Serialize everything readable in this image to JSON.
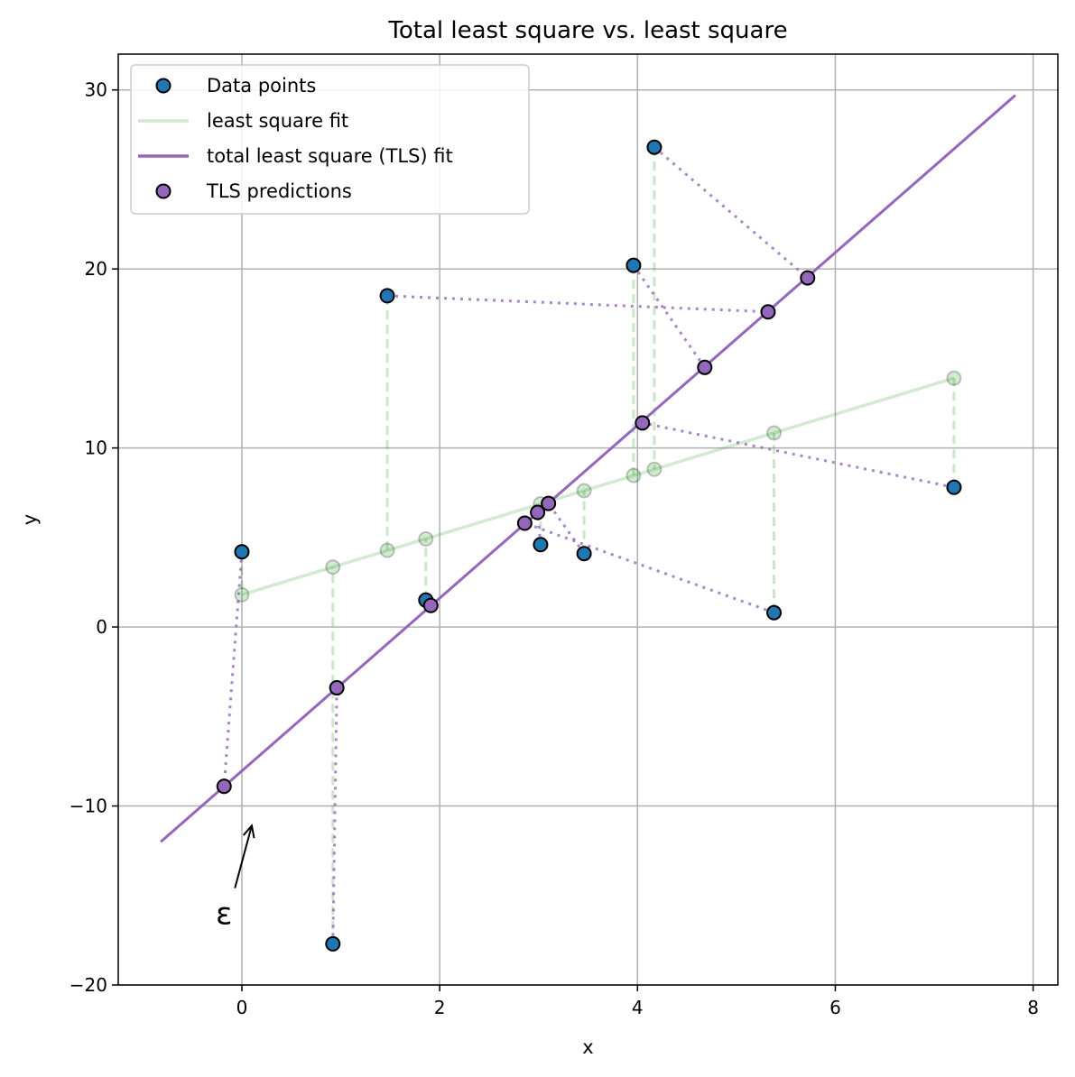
{
  "chart_data": {
    "type": "scatter",
    "title": "Total least square vs. least square",
    "xlabel": "x",
    "ylabel": "y",
    "xlim": [
      -1.25,
      8.25
    ],
    "ylim": [
      -20,
      32
    ],
    "xticks": [
      0,
      2,
      4,
      6,
      8
    ],
    "yticks": [
      -20,
      -10,
      0,
      10,
      20,
      30
    ],
    "xtick_labels": [
      "0",
      "2",
      "4",
      "6",
      "8"
    ],
    "ytick_labels": [
      "−20",
      "−10",
      "0",
      "10",
      "20",
      "30"
    ],
    "grid": true,
    "legend_position": "upper-left",
    "annotation": {
      "text": "ε",
      "text_at": [
        -0.18,
        -16.0
      ],
      "arrow_to": [
        0.1,
        -11.1
      ]
    },
    "colors": {
      "data_points": "#1f77b4",
      "ls_fit": "#2ca02c",
      "tls_fit": "#9467bd",
      "tls_predictions": "#9467bd",
      "grid": "#b0b0b0"
    },
    "series": [
      {
        "name": "Data points",
        "kind": "scatter",
        "points": [
          [
            0.0,
            4.2
          ],
          [
            0.92,
            -17.7
          ],
          [
            1.47,
            18.5
          ],
          [
            1.86,
            1.5
          ],
          [
            3.02,
            4.6
          ],
          [
            3.46,
            4.1
          ],
          [
            3.96,
            20.2
          ],
          [
            4.17,
            26.8
          ],
          [
            5.38,
            0.8
          ],
          [
            7.2,
            7.8
          ]
        ]
      },
      {
        "name": "least square fit",
        "kind": "line",
        "x": [
          0.0,
          7.2
        ],
        "y": [
          1.8,
          13.9
        ],
        "ls_predictions": [
          [
            0.0,
            1.8
          ],
          [
            0.92,
            3.35
          ],
          [
            1.47,
            4.28
          ],
          [
            1.86,
            4.92
          ],
          [
            3.02,
            6.88
          ],
          [
            3.46,
            7.61
          ],
          [
            3.96,
            8.46
          ],
          [
            4.17,
            8.81
          ],
          [
            5.38,
            10.84
          ],
          [
            7.2,
            13.9
          ]
        ]
      },
      {
        "name": "total least square (TLS) fit",
        "kind": "line",
        "x": [
          -0.82,
          7.82
        ],
        "y": [
          -12.0,
          29.7
        ]
      },
      {
        "name": "TLS predictions",
        "kind": "scatter",
        "points": [
          [
            -0.18,
            -8.9
          ],
          [
            0.96,
            -3.4
          ],
          [
            5.32,
            17.6
          ],
          [
            1.91,
            1.2
          ],
          [
            2.99,
            6.4
          ],
          [
            3.1,
            6.9
          ],
          [
            4.68,
            14.5
          ],
          [
            5.72,
            19.5
          ],
          [
            2.86,
            5.8
          ],
          [
            4.05,
            11.4
          ]
        ]
      }
    ]
  }
}
